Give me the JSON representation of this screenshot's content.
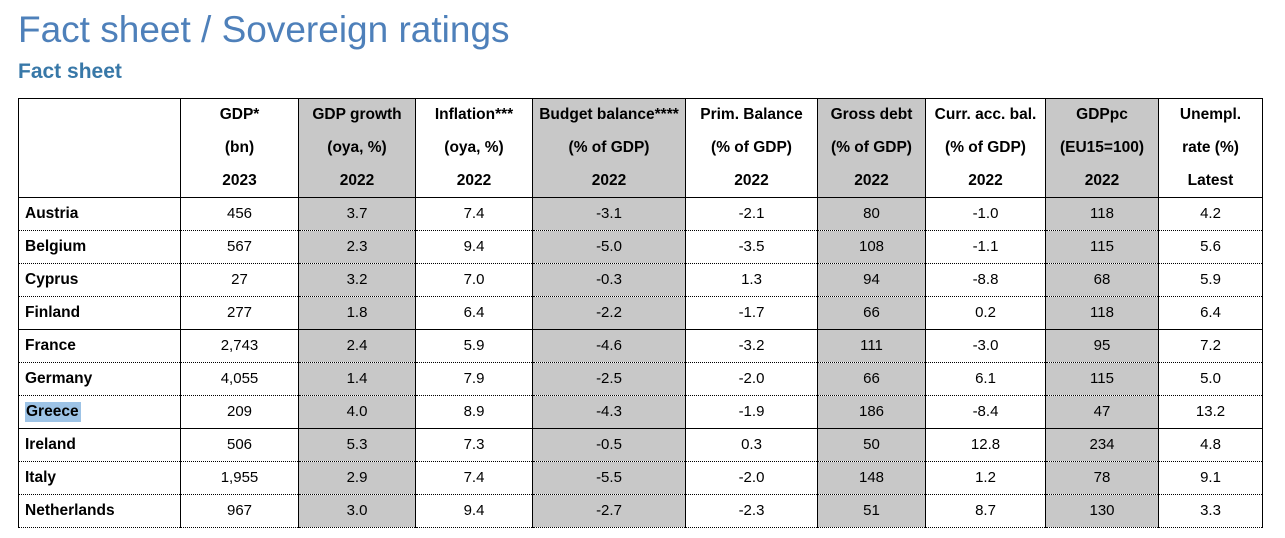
{
  "page": {
    "title": "Fact sheet / Sovereign ratings",
    "subtitle": "Fact sheet"
  },
  "colors": {
    "title_blue": "#4e80ba",
    "subtitle_blue": "#3878a8",
    "column_shade": "#c8c8c8",
    "selection_highlight": "#9dc3e6"
  },
  "table": {
    "columns": [
      {
        "title": "",
        "unit": "",
        "year": "",
        "shaded": false
      },
      {
        "title": "GDP*",
        "unit": "(bn)",
        "year": "2023",
        "shaded": false
      },
      {
        "title": "GDP growth",
        "unit": "(oya, %)",
        "year": "2022",
        "shaded": true
      },
      {
        "title": "Inflation***",
        "unit": "(oya, %)",
        "year": "2022",
        "shaded": false
      },
      {
        "title": "Budget balance****",
        "unit": "(% of GDP)",
        "year": "2022",
        "shaded": true
      },
      {
        "title": "Prim. Balance",
        "unit": "(% of GDP)",
        "year": "2022",
        "shaded": false
      },
      {
        "title": "Gross debt",
        "unit": "(% of GDP)",
        "year": "2022",
        "shaded": true
      },
      {
        "title": "Curr. acc. bal.",
        "unit": "(% of GDP)",
        "year": "2022",
        "shaded": false
      },
      {
        "title": "GDPpc",
        "unit": "(EU15=100)",
        "year": "2022",
        "shaded": true
      },
      {
        "title": "Unempl.",
        "unit": "rate (%)",
        "year": "Latest",
        "shaded": false
      }
    ],
    "rows": [
      {
        "country": "Austria",
        "values": [
          "456",
          "3.7",
          "7.4",
          "-3.1",
          "-2.1",
          "80",
          "-1.0",
          "118",
          "4.2"
        ],
        "group_start": false,
        "highlighted": false
      },
      {
        "country": "Belgium",
        "values": [
          "567",
          "2.3",
          "9.4",
          "-5.0",
          "-3.5",
          "108",
          "-1.1",
          "115",
          "5.6"
        ],
        "group_start": false,
        "highlighted": false
      },
      {
        "country": "Cyprus",
        "values": [
          "27",
          "3.2",
          "7.0",
          "-0.3",
          "1.3",
          "94",
          "-8.8",
          "68",
          "5.9"
        ],
        "group_start": false,
        "highlighted": false
      },
      {
        "country": "Finland",
        "values": [
          "277",
          "1.8",
          "6.4",
          "-2.2",
          "-1.7",
          "66",
          "0.2",
          "118",
          "6.4"
        ],
        "group_start": false,
        "highlighted": false
      },
      {
        "country": "France",
        "values": [
          "2,743",
          "2.4",
          "5.9",
          "-4.6",
          "-3.2",
          "111",
          "-3.0",
          "95",
          "7.2"
        ],
        "group_start": true,
        "highlighted": false
      },
      {
        "country": "Germany",
        "values": [
          "4,055",
          "1.4",
          "7.9",
          "-2.5",
          "-2.0",
          "66",
          "6.1",
          "115",
          "5.0"
        ],
        "group_start": false,
        "highlighted": false
      },
      {
        "country": "Greece",
        "values": [
          "209",
          "4.0",
          "8.9",
          "-4.3",
          "-1.9",
          "186",
          "-8.4",
          "47",
          "13.2"
        ],
        "group_start": false,
        "highlighted": true
      },
      {
        "country": "Ireland",
        "values": [
          "506",
          "5.3",
          "7.3",
          "-0.5",
          "0.3",
          "50",
          "12.8",
          "234",
          "4.8"
        ],
        "group_start": true,
        "highlighted": false
      },
      {
        "country": "Italy",
        "values": [
          "1,955",
          "2.9",
          "7.4",
          "-5.5",
          "-2.0",
          "148",
          "1.2",
          "78",
          "9.1"
        ],
        "group_start": false,
        "highlighted": false
      },
      {
        "country": "Netherlands",
        "values": [
          "967",
          "3.0",
          "9.4",
          "-2.7",
          "-2.3",
          "51",
          "8.7",
          "130",
          "3.3"
        ],
        "group_start": false,
        "highlighted": false
      }
    ]
  }
}
